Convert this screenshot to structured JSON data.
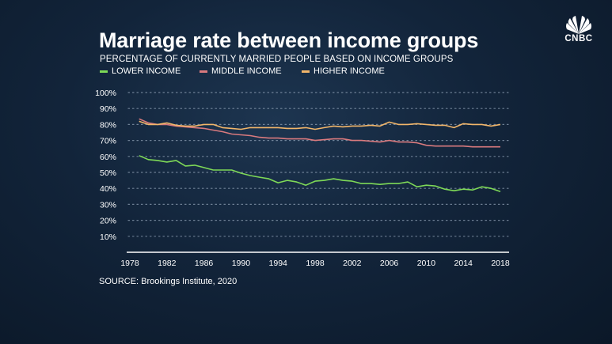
{
  "brand": {
    "logo_text": "CNBC"
  },
  "source": "SOURCE: Brookings Institute, 2020",
  "chart_data": {
    "type": "line",
    "title": "Marriage rate between income groups",
    "subtitle": "PERCENTAGE OF CURRENTLY MARRIED PEOPLE BASED ON INCOME GROUPS",
    "xlabel": "",
    "ylabel": "",
    "ylim": [
      0,
      100
    ],
    "xlim": [
      1978,
      2018
    ],
    "y_ticks": [
      "10%",
      "20%",
      "30%",
      "40%",
      "50%",
      "60%",
      "70%",
      "80%",
      "90%",
      "100%"
    ],
    "y_tick_values": [
      10,
      20,
      30,
      40,
      50,
      60,
      70,
      80,
      90,
      100
    ],
    "x_ticks": [
      "1978",
      "1982",
      "1986",
      "1990",
      "1994",
      "1998",
      "2002",
      "2006",
      "2010",
      "2014",
      "2018"
    ],
    "x_tick_values": [
      1978,
      1982,
      1986,
      1990,
      1994,
      1998,
      2002,
      2006,
      2010,
      2014,
      2018
    ],
    "grid": "horizontal dotted",
    "x": [
      1979,
      1980,
      1981,
      1982,
      1983,
      1984,
      1985,
      1986,
      1987,
      1988,
      1989,
      1990,
      1991,
      1992,
      1993,
      1994,
      1995,
      1996,
      1997,
      1998,
      1999,
      2000,
      2001,
      2002,
      2003,
      2004,
      2005,
      2006,
      2007,
      2008,
      2009,
      2010,
      2011,
      2012,
      2013,
      2014,
      2015,
      2016,
      2017,
      2018
    ],
    "series": [
      {
        "name": "LOWER INCOME",
        "color": "#7ed957",
        "values": [
          60.5,
          58,
          57.5,
          56.5,
          57.5,
          54,
          54.5,
          53,
          51.5,
          51.5,
          51.5,
          49.5,
          48,
          47,
          46,
          43.5,
          45,
          44,
          42,
          44.5,
          45,
          46,
          45,
          44.5,
          43,
          43,
          42.5,
          43,
          43,
          44,
          41,
          42,
          41.5,
          39.5,
          38.5,
          39.5,
          39,
          41,
          40,
          38
        ]
      },
      {
        "name": "MIDDLE INCOME",
        "color": "#d97a7e",
        "values": [
          83.5,
          81,
          80,
          80,
          79,
          78.5,
          78,
          77.5,
          76.5,
          75.5,
          74,
          73.5,
          73,
          72,
          71.5,
          71.5,
          71,
          71,
          71,
          70,
          70.5,
          71,
          71,
          70,
          70,
          69.5,
          69,
          70,
          69,
          69,
          68.5,
          67,
          66.5,
          66.5,
          66.5,
          66.5,
          66,
          66,
          66,
          66
        ]
      },
      {
        "name": "HIGHER INCOME",
        "color": "#f2b66a",
        "values": [
          82,
          80,
          80,
          81,
          79.5,
          79,
          79,
          80,
          80,
          78,
          77.5,
          77,
          78,
          78,
          78,
          78,
          77.5,
          77.5,
          78,
          77,
          78,
          79,
          78.5,
          79,
          79,
          79.5,
          79,
          81.5,
          80,
          80,
          80.5,
          80,
          79.5,
          79.5,
          78,
          80.5,
          80,
          80,
          79,
          80
        ]
      }
    ]
  }
}
